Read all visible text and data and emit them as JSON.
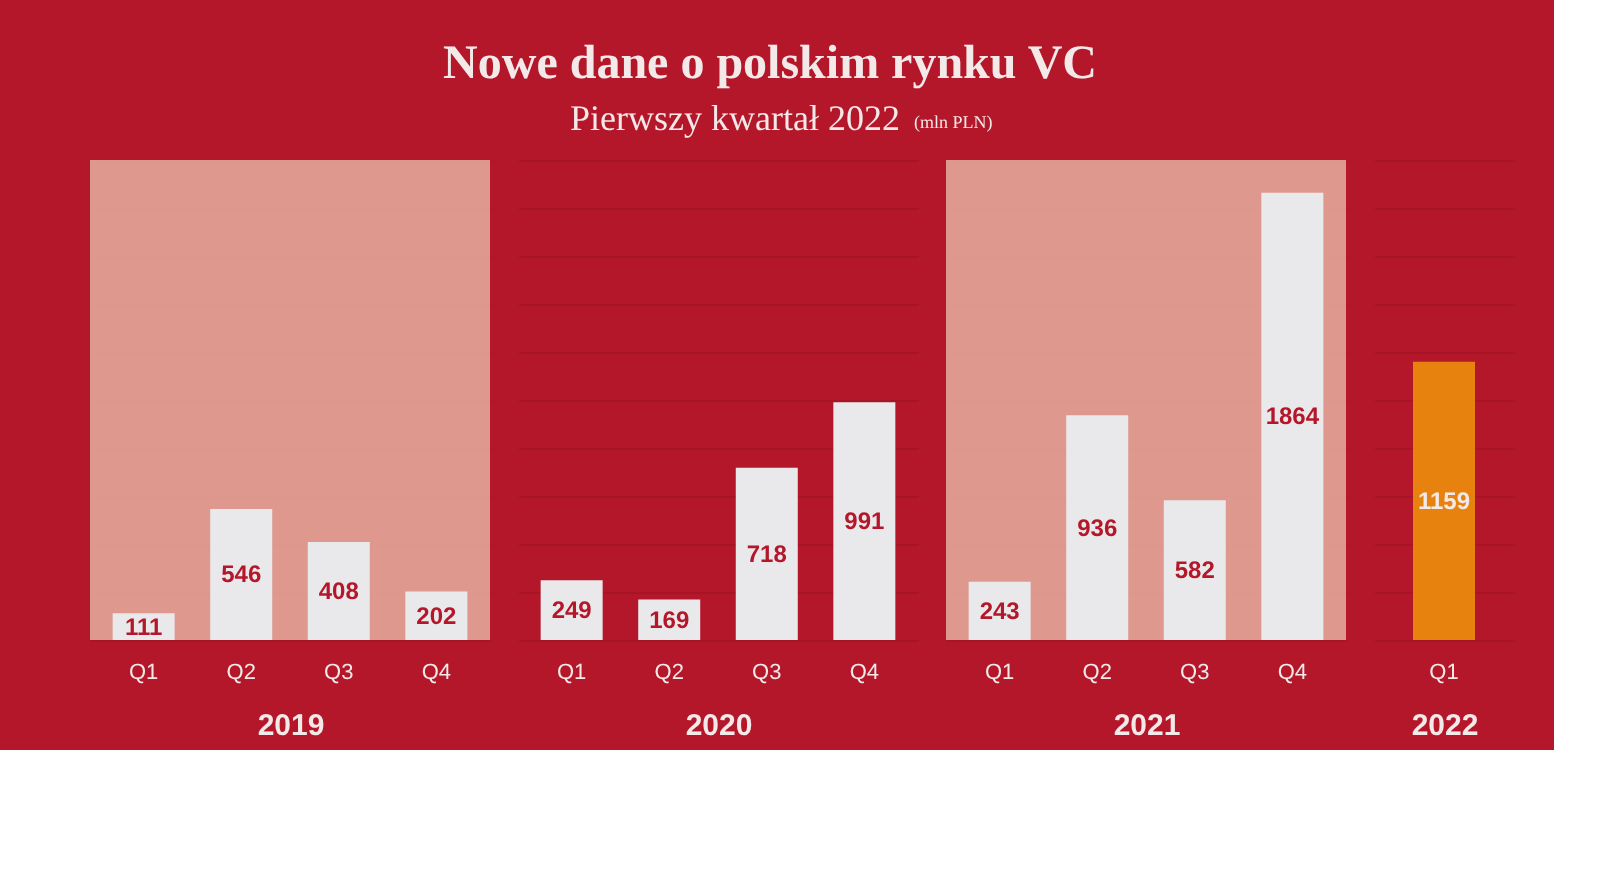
{
  "chart_data": [
    {
      "type": "other",
      "title": "Nowe dane o polskim rynku VC",
      "subtitle": "Pierwszy kwartał 2022",
      "annotations": [
        "(mln PLN)"
      ]
    },
    {
      "type": "bar",
      "xlabel": "2019",
      "categories": [
        "Q1",
        "Q2",
        "Q3",
        "Q4"
      ],
      "values": [
        111,
        546,
        408,
        202
      ],
      "colors": [
        "#e9e9eb",
        "#e9e9eb",
        "#e9e9eb",
        "#e9e9eb"
      ],
      "data_labels": true,
      "ylim": [
        0,
        2000
      ],
      "yticks": [
        {
          "value": 0,
          "label": null
        },
        {
          "value": 200,
          "label": null
        },
        {
          "value": 400,
          "label": null
        },
        {
          "value": 600,
          "label": null
        },
        {
          "value": 800,
          "label": null
        },
        {
          "value": 1000,
          "label": null
        },
        {
          "value": 1200,
          "label": null
        },
        {
          "value": 1400,
          "label": null
        },
        {
          "value": 1600,
          "label": null
        },
        {
          "value": 1800,
          "label": null
        },
        {
          "value": 2000,
          "label": null
        }
      ],
      "grid": "y",
      "tick_labels": "x",
      "bands": [
        {
          "axis": "x",
          "from": "Q1",
          "to": "Q4",
          "color": "#e2a699"
        }
      ]
    },
    {
      "type": "bar",
      "xlabel": "2020",
      "categories": [
        "Q1",
        "Q2",
        "Q3",
        "Q4"
      ],
      "values": [
        249,
        169,
        718,
        991
      ],
      "colors": [
        "#e9e9eb",
        "#e9e9eb",
        "#e9e9eb",
        "#e9e9eb"
      ],
      "data_labels": true,
      "ylim": [
        0,
        2000
      ],
      "yticks": [
        {
          "value": 0,
          "label": null
        },
        {
          "value": 200,
          "label": null
        },
        {
          "value": 400,
          "label": null
        },
        {
          "value": 600,
          "label": null
        },
        {
          "value": 800,
          "label": null
        },
        {
          "value": 1000,
          "label": null
        },
        {
          "value": 1200,
          "label": null
        },
        {
          "value": 1400,
          "label": null
        },
        {
          "value": 1600,
          "label": null
        },
        {
          "value": 1800,
          "label": null
        },
        {
          "value": 2000,
          "label": null
        }
      ],
      "grid": "y",
      "tick_labels": "x"
    },
    {
      "type": "bar",
      "xlabel": "2021",
      "categories": [
        "Q1",
        "Q2",
        "Q3",
        "Q4"
      ],
      "values": [
        243,
        936,
        582,
        1864
      ],
      "colors": [
        "#e9e9eb",
        "#e9e9eb",
        "#e9e9eb",
        "#e9e9eb"
      ],
      "data_labels": true,
      "ylim": [
        0,
        2000
      ],
      "yticks": [
        {
          "value": 0,
          "label": null
        },
        {
          "value": 200,
          "label": null
        },
        {
          "value": 400,
          "label": null
        },
        {
          "value": 600,
          "label": null
        },
        {
          "value": 800,
          "label": null
        },
        {
          "value": 1000,
          "label": null
        },
        {
          "value": 1200,
          "label": null
        },
        {
          "value": 1400,
          "label": null
        },
        {
          "value": 1600,
          "label": null
        },
        {
          "value": 1800,
          "label": null
        },
        {
          "value": 2000,
          "label": null
        }
      ],
      "grid": "y",
      "tick_labels": "x",
      "bands": [
        {
          "axis": "x",
          "from": "Q1",
          "to": "Q4",
          "color": "#e2a699"
        }
      ]
    },
    {
      "type": "bar",
      "xlabel": "2022",
      "categories": [
        "Q1"
      ],
      "values": [
        1159
      ],
      "colors": [
        "#e8820e"
      ],
      "data_labels": true,
      "ylim": [
        0,
        2000
      ],
      "yticks": [
        {
          "value": 0,
          "label": null
        },
        {
          "value": 200,
          "label": null
        },
        {
          "value": 400,
          "label": null
        },
        {
          "value": 600,
          "label": null
        },
        {
          "value": 800,
          "label": null
        },
        {
          "value": 1000,
          "label": null
        },
        {
          "value": 1200,
          "label": null
        },
        {
          "value": 1400,
          "label": null
        },
        {
          "value": 1600,
          "label": null
        },
        {
          "value": 1800,
          "label": null
        },
        {
          "value": 2000,
          "label": null
        }
      ],
      "grid": "y",
      "tick_labels": "x"
    }
  ]
}
